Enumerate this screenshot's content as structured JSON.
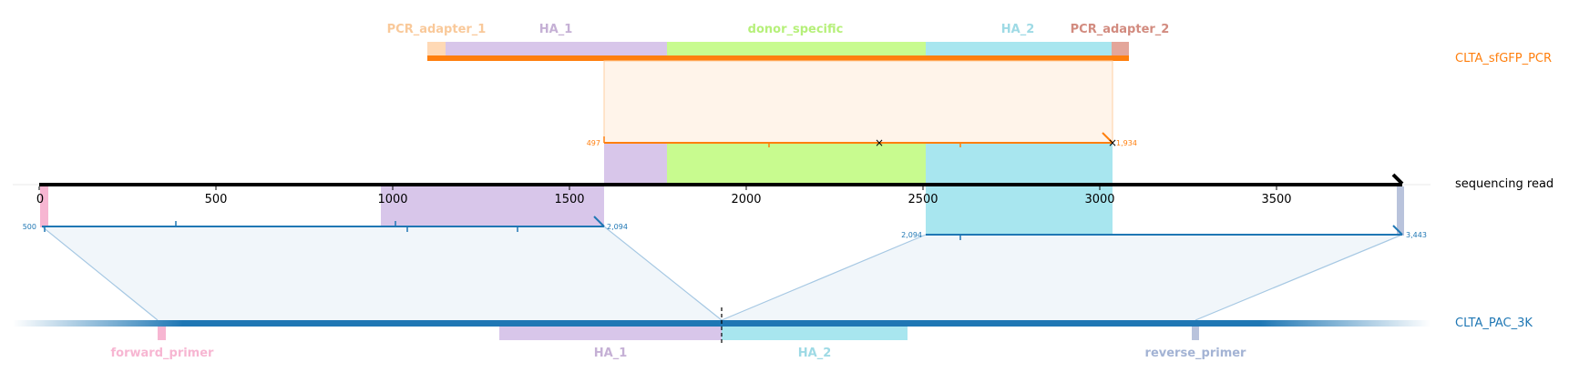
{
  "colors": {
    "orange": "#ff7f0e",
    "blue": "#1f77b4",
    "pink": "#f7b6d2",
    "purple": "#c5b0d5",
    "green": "#bff584",
    "cyan": "#9edae5",
    "peach": "#ffbb78",
    "brown": "#d28b7f",
    "slate": "#a3b3d4",
    "black": "#000000"
  },
  "tracks": {
    "top": {
      "label": "CLTA_sfGFP_PCR"
    },
    "middle": {
      "label": "sequencing read"
    },
    "bottom": {
      "label": "CLTA_PAC_3K"
    }
  },
  "top_features": [
    {
      "name": "PCR_adapter_1",
      "color": "#ffd9b5",
      "label_color": "#f9c99a"
    },
    {
      "name": "HA_1",
      "color": "#d8c6ea",
      "label_color": "#c5b0d5"
    },
    {
      "name": "donor_specific",
      "color": "#c8fb8f",
      "label_color": "#b6f07a"
    },
    {
      "name": "HA_2",
      "color": "#a8e6ef",
      "label_color": "#9edae5"
    },
    {
      "name": "PCR_adapter_2",
      "color": "#e3a69a",
      "label_color": "#d28b7f"
    }
  ],
  "bottom_features": [
    {
      "name": "forward_primer",
      "color": "#f7b6d2"
    },
    {
      "name": "HA_1",
      "color": "#c5b0d5"
    },
    {
      "name": "HA_2",
      "color": "#9edae5"
    },
    {
      "name": "reverse_primer",
      "color": "#a3b3d4"
    }
  ],
  "axis": {
    "min": 0,
    "max": 3850,
    "ticks": [
      0,
      500,
      1000,
      1500,
      2000,
      2500,
      3000,
      3500
    ],
    "tick_labels": [
      "0",
      "500",
      "1000",
      "1500",
      "2000",
      "2500",
      "3000",
      "3500"
    ]
  },
  "alignments": {
    "top": {
      "start": 497,
      "end": 1934,
      "start_label": "497",
      "end_label": "1,934"
    },
    "bottom_left": {
      "start": 500,
      "end": 2094,
      "start_label": "500",
      "end_label": "2,094"
    },
    "bottom_right": {
      "start": 2094,
      "end": 3443,
      "start_label": "2,094",
      "end_label": "3,443"
    }
  }
}
